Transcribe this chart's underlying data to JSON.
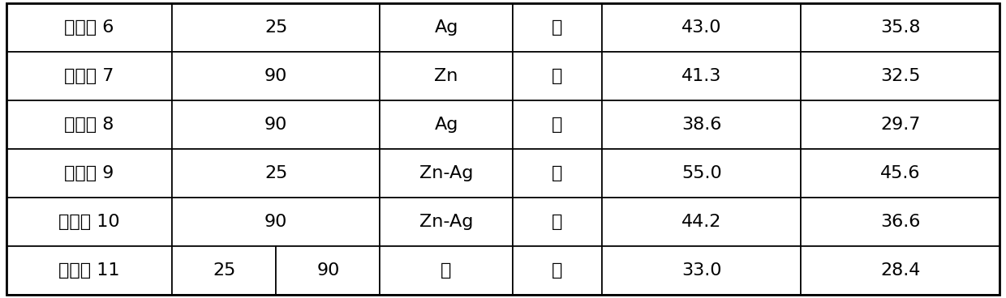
{
  "rows": [
    {
      "col0": "对比例 6",
      "col1a": "25",
      "col1b": "",
      "col2": "Ag",
      "col3": "否",
      "col4": "43.0",
      "col5": "35.8"
    },
    {
      "col0": "对比例 7",
      "col1a": "90",
      "col1b": "",
      "col2": "Zn",
      "col3": "否",
      "col4": "41.3",
      "col5": "32.5"
    },
    {
      "col0": "对比例 8",
      "col1a": "90",
      "col1b": "",
      "col2": "Ag",
      "col3": "否",
      "col4": "38.6",
      "col5": "29.7"
    },
    {
      "col0": "对比例 9",
      "col1a": "25",
      "col1b": "",
      "col2": "Zn-Ag",
      "col3": "否",
      "col4": "55.0",
      "col5": "45.6"
    },
    {
      "col0": "对比例 10",
      "col1a": "90",
      "col1b": "",
      "col2": "Zn-Ag",
      "col3": "否",
      "col4": "44.2",
      "col5": "36.6"
    },
    {
      "col0": "对比例 11",
      "col1a": "25",
      "col1b": "90",
      "col2": "无",
      "col3": "否",
      "col4": "33.0",
      "col5": "28.4"
    }
  ],
  "bg_color": "#ffffff",
  "line_color": "#000000",
  "text_color": "#000000",
  "font_size": 16,
  "raw_col_widths": [
    175,
    110,
    110,
    140,
    95,
    210,
    210
  ]
}
